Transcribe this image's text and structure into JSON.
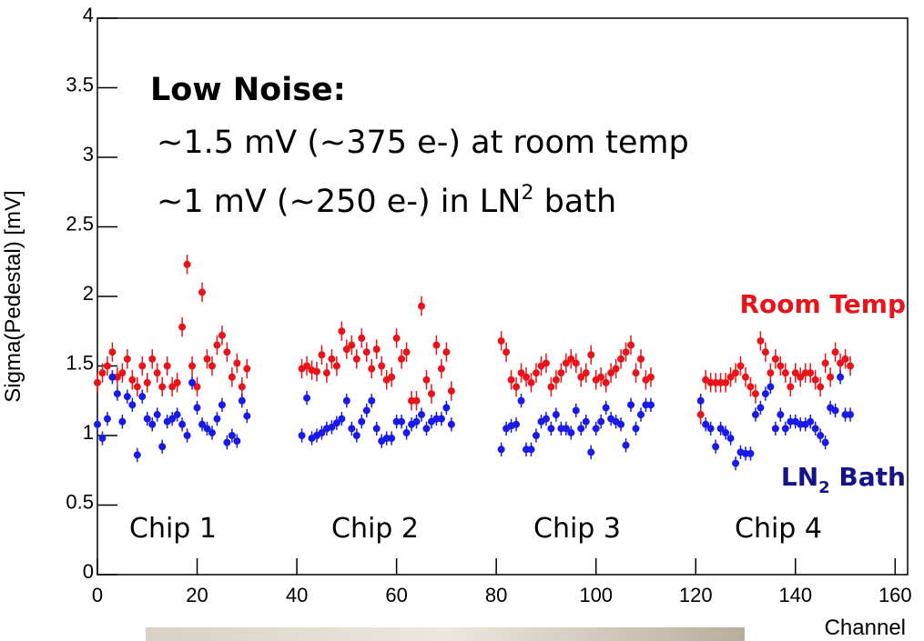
{
  "chart_data": {
    "type": "scatter",
    "x_label": "Channel",
    "y_label": "Sigma(Pedestal) [mV]",
    "xlim": [
      0,
      162.5
    ],
    "ylim": [
      0,
      4
    ],
    "xticks": [
      0,
      20,
      40,
      60,
      80,
      100,
      120,
      140,
      160
    ],
    "yticks": [
      0,
      0.5,
      1,
      1.5,
      2,
      2.5,
      3,
      3.5,
      4
    ],
    "annotation": {
      "heading": "Low Noise:",
      "line1": "~1.5 mV (~375 e-) at room temp",
      "line2": "~1 mV (~250 e-) in LN",
      "line2_sup": "2",
      "line2_tail": " bath"
    },
    "chip_labels": [
      "Chip 1",
      "Chip 2",
      "Chip 3",
      "Chip 4"
    ],
    "x": [
      0,
      1,
      2,
      3,
      4,
      5,
      6,
      7,
      8,
      9,
      10,
      11,
      12,
      13,
      14,
      15,
      16,
      17,
      18,
      19,
      20,
      21,
      22,
      23,
      24,
      25,
      26,
      27,
      28,
      29,
      30,
      41,
      42,
      43,
      44,
      45,
      46,
      47,
      48,
      49,
      50,
      51,
      52,
      53,
      54,
      55,
      56,
      57,
      58,
      59,
      60,
      61,
      62,
      63,
      64,
      65,
      66,
      67,
      68,
      69,
      70,
      71,
      81,
      82,
      83,
      84,
      85,
      86,
      87,
      88,
      89,
      90,
      91,
      92,
      93,
      94,
      95,
      96,
      97,
      98,
      99,
      100,
      101,
      102,
      103,
      104,
      105,
      106,
      107,
      108,
      109,
      110,
      111,
      121,
      122,
      123,
      124,
      125,
      126,
      127,
      128,
      129,
      130,
      131,
      132,
      133,
      134,
      135,
      136,
      137,
      138,
      139,
      140,
      141,
      142,
      143,
      144,
      145,
      146,
      147,
      148,
      149,
      150,
      151
    ],
    "series": [
      {
        "name": "Room Temp",
        "color": "#e8141a",
        "label_color": "#e8141a",
        "error": 0.07,
        "values": [
          1.38,
          1.45,
          1.5,
          1.6,
          1.42,
          1.45,
          1.55,
          1.4,
          1.35,
          1.5,
          1.38,
          1.55,
          1.45,
          1.35,
          1.5,
          1.35,
          1.38,
          1.78,
          2.23,
          1.5,
          1.35,
          2.03,
          1.55,
          1.5,
          1.65,
          1.72,
          1.6,
          1.42,
          1.52,
          1.35,
          1.48,
          1.48,
          1.5,
          1.47,
          1.46,
          1.58,
          1.45,
          1.55,
          1.5,
          1.75,
          1.62,
          1.65,
          1.55,
          1.7,
          1.6,
          1.48,
          1.62,
          1.5,
          1.4,
          1.42,
          1.7,
          1.55,
          1.6,
          1.25,
          1.25,
          1.93,
          1.4,
          1.3,
          1.65,
          1.48,
          1.6,
          1.32,
          1.68,
          1.6,
          1.4,
          1.35,
          1.45,
          1.42,
          1.38,
          1.45,
          1.5,
          1.52,
          1.35,
          1.4,
          1.45,
          1.52,
          1.55,
          1.52,
          1.42,
          1.45,
          1.58,
          1.4,
          1.42,
          1.38,
          1.45,
          1.48,
          1.55,
          1.6,
          1.65,
          1.45,
          1.55,
          1.4,
          1.42,
          1.15,
          1.4,
          1.38,
          1.38,
          1.38,
          1.38,
          1.42,
          1.45,
          1.5,
          1.42,
          1.35,
          1.3,
          1.68,
          1.6,
          1.45,
          1.55,
          1.5,
          1.45,
          1.35,
          1.45,
          1.42,
          1.45,
          1.45,
          1.4,
          1.35,
          1.52,
          1.42,
          1.6,
          1.52,
          1.55,
          1.5
        ]
      },
      {
        "name": "LN",
        "name_sub": "2",
        "name_tail": " Bath",
        "color": "#1a1ae8",
        "label_color": "#141488",
        "error": 0.05,
        "values": [
          1.08,
          0.98,
          1.12,
          1.42,
          1.3,
          1.1,
          1.28,
          1.22,
          0.86,
          1.28,
          1.12,
          1.08,
          1.15,
          0.92,
          1.1,
          1.12,
          1.15,
          1.08,
          1.0,
          1.38,
          1.2,
          1.08,
          1.05,
          1.02,
          1.12,
          1.22,
          0.95,
          1.0,
          0.96,
          1.25,
          1.14,
          1.0,
          1.27,
          0.98,
          1.0,
          1.02,
          1.05,
          1.06,
          1.09,
          1.12,
          1.25,
          1.05,
          1.0,
          1.1,
          1.18,
          1.25,
          1.05,
          0.96,
          0.98,
          0.98,
          1.1,
          1.1,
          1.02,
          1.08,
          1.1,
          1.15,
          1.05,
          1.1,
          1.12,
          1.12,
          1.2,
          1.08,
          0.9,
          1.05,
          1.07,
          1.08,
          1.25,
          0.9,
          0.9,
          1.0,
          1.1,
          1.12,
          1.05,
          1.15,
          1.05,
          1.05,
          1.02,
          1.18,
          1.05,
          1.1,
          0.88,
          1.05,
          1.1,
          1.2,
          1.12,
          1.1,
          1.08,
          0.93,
          1.22,
          1.05,
          1.15,
          1.22,
          1.22,
          1.25,
          1.08,
          1.05,
          0.92,
          1.05,
          1.02,
          0.98,
          0.8,
          0.88,
          0.87,
          0.87,
          1.15,
          1.2,
          1.3,
          1.35,
          1.05,
          1.15,
          1.05,
          1.1,
          1.1,
          1.08,
          1.08,
          1.1,
          1.05,
          1.0,
          0.95,
          1.2,
          1.18,
          1.42,
          1.15,
          1.15
        ]
      }
    ]
  }
}
